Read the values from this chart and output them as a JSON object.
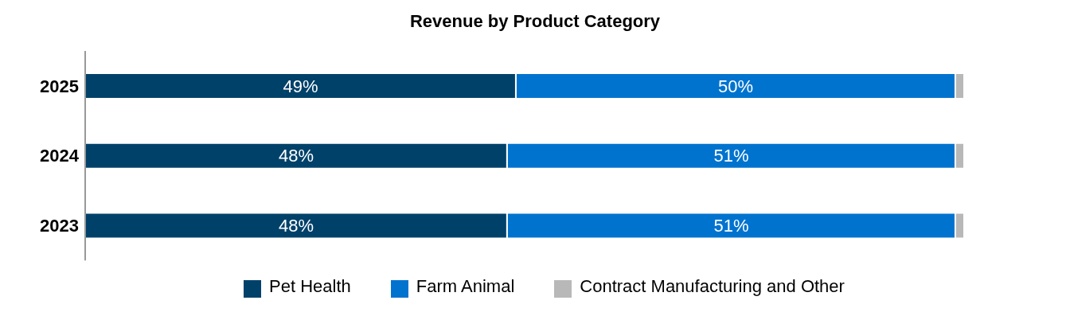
{
  "chart_data": {
    "type": "bar",
    "orientation": "horizontal",
    "stacked": true,
    "title": "Revenue by Product Category",
    "categories": [
      "2025",
      "2024",
      "2023"
    ],
    "legend": "bottom",
    "grid": false,
    "series": [
      {
        "name": "Pet Health",
        "color": "#00416a",
        "values": [
          49,
          48,
          48
        ],
        "value_labels": [
          "49%",
          "48%",
          "48%"
        ]
      },
      {
        "name": "Farm Animal",
        "color": "#0073cf",
        "values": [
          50,
          51,
          51
        ],
        "value_labels": [
          "50%",
          "51%",
          "51%"
        ]
      },
      {
        "name": "Contract Manufacturing and Other",
        "color": "#b8b8b8",
        "values": [
          1,
          1,
          1
        ],
        "value_labels": [
          null,
          null,
          null
        ]
      }
    ]
  }
}
